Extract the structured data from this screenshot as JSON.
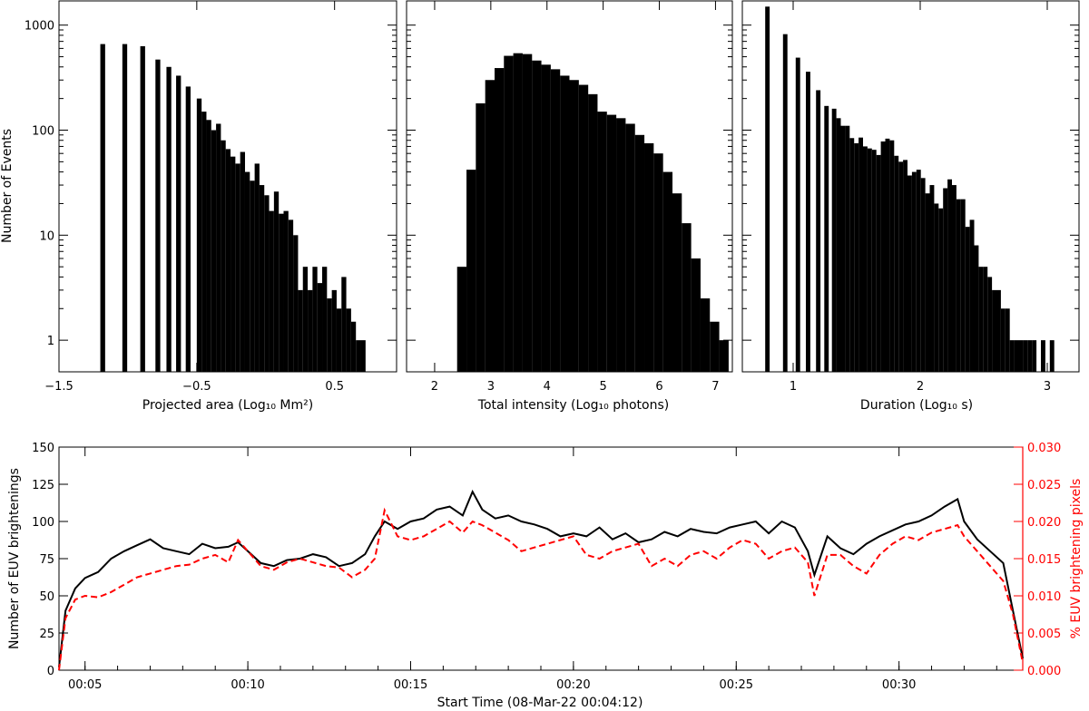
{
  "chart_data": [
    {
      "type": "bar",
      "id": "area-hist",
      "xlabel": "Projected area (Log₁₀ Mm²)",
      "ylabel": "Number of Events",
      "yscale": "log",
      "ylim": [
        0.5,
        1700
      ],
      "xlim": [
        -1.5,
        0.95
      ],
      "xticks": [
        -1.5,
        -0.5,
        0.5
      ],
      "xtick_labels": [
        "−1.5",
        "−0.5",
        "0.5"
      ],
      "yticks": [
        1,
        10,
        100,
        1000
      ],
      "ytick_labels": [
        "1",
        "10",
        "100",
        "1000"
      ],
      "bin_width": 0.035,
      "bins": [
        [
          -1.2,
          660
        ],
        [
          -1.04,
          660
        ],
        [
          -0.91,
          630
        ],
        [
          -0.8,
          470
        ],
        [
          -0.72,
          400
        ],
        [
          -0.65,
          330
        ],
        [
          -0.58,
          260
        ],
        [
          -0.5,
          200
        ],
        [
          -0.465,
          150
        ],
        [
          -0.43,
          125
        ],
        [
          -0.395,
          100
        ],
        [
          -0.36,
          115
        ],
        [
          -0.325,
          80
        ],
        [
          -0.29,
          66
        ],
        [
          -0.255,
          56
        ],
        [
          -0.22,
          48
        ],
        [
          -0.185,
          62
        ],
        [
          -0.15,
          40
        ],
        [
          -0.115,
          33
        ],
        [
          -0.08,
          48
        ],
        [
          -0.045,
          30
        ],
        [
          -0.01,
          24
        ],
        [
          0.025,
          17
        ],
        [
          0.06,
          26
        ],
        [
          0.095,
          16
        ],
        [
          0.13,
          17
        ],
        [
          0.165,
          14
        ],
        [
          0.2,
          10
        ],
        [
          0.235,
          3
        ],
        [
          0.27,
          5
        ],
        [
          0.305,
          3
        ],
        [
          0.34,
          5
        ],
        [
          0.375,
          3.5
        ],
        [
          0.41,
          5
        ],
        [
          0.445,
          2.5
        ],
        [
          0.48,
          3
        ],
        [
          0.515,
          2
        ],
        [
          0.55,
          4
        ],
        [
          0.585,
          2
        ],
        [
          0.62,
          1.5
        ],
        [
          0.655,
          1
        ],
        [
          0.69,
          1
        ]
      ]
    },
    {
      "type": "bar",
      "id": "intensity-hist",
      "xlabel": "Total intensity (Log₁₀ photons)",
      "ylabel": "",
      "yscale": "log",
      "ylim": [
        0.5,
        1700
      ],
      "xlim": [
        1.5,
        7.3
      ],
      "xticks": [
        2,
        3,
        4,
        5,
        6,
        7
      ],
      "xtick_labels": [
        "2",
        "3",
        "4",
        "5",
        "6",
        "7"
      ],
      "bin_width": 0.167,
      "bins": [
        [
          2.4,
          5
        ],
        [
          2.567,
          42
        ],
        [
          2.733,
          180
        ],
        [
          2.9,
          300
        ],
        [
          3.067,
          390
        ],
        [
          3.233,
          510
        ],
        [
          3.4,
          540
        ],
        [
          3.567,
          530
        ],
        [
          3.733,
          460
        ],
        [
          3.9,
          420
        ],
        [
          4.067,
          380
        ],
        [
          4.233,
          330
        ],
        [
          4.4,
          300
        ],
        [
          4.567,
          270
        ],
        [
          4.733,
          220
        ],
        [
          4.9,
          150
        ],
        [
          5.067,
          140
        ],
        [
          5.233,
          130
        ],
        [
          5.4,
          115
        ],
        [
          5.567,
          90
        ],
        [
          5.733,
          75
        ],
        [
          5.9,
          60
        ],
        [
          6.067,
          40
        ],
        [
          6.233,
          25
        ],
        [
          6.4,
          13
        ],
        [
          6.567,
          6
        ],
        [
          6.733,
          2.5
        ],
        [
          6.9,
          1.5
        ],
        [
          7.067,
          1
        ]
      ]
    },
    {
      "type": "bar",
      "id": "duration-hist",
      "xlabel": "Duration (Log₁₀ s)",
      "ylabel": "",
      "yscale": "log",
      "ylim": [
        0.5,
        1700
      ],
      "xlim": [
        0.6,
        3.25
      ],
      "xticks": [
        1,
        2,
        3
      ],
      "xtick_labels": [
        "1",
        "2",
        "3"
      ],
      "bin_width": 0.035,
      "bins": [
        [
          0.78,
          1500
        ],
        [
          0.92,
          820
        ],
        [
          1.02,
          490
        ],
        [
          1.1,
          360
        ],
        [
          1.18,
          240
        ],
        [
          1.245,
          170
        ],
        [
          1.305,
          160
        ],
        [
          1.34,
          130
        ],
        [
          1.375,
          110
        ],
        [
          1.41,
          110
        ],
        [
          1.445,
          84
        ],
        [
          1.48,
          75
        ],
        [
          1.515,
          85
        ],
        [
          1.55,
          70
        ],
        [
          1.585,
          67
        ],
        [
          1.62,
          65
        ],
        [
          1.655,
          58
        ],
        [
          1.69,
          78
        ],
        [
          1.725,
          83
        ],
        [
          1.76,
          80
        ],
        [
          1.795,
          57
        ],
        [
          1.83,
          50
        ],
        [
          1.865,
          52
        ],
        [
          1.9,
          37
        ],
        [
          1.935,
          40
        ],
        [
          1.97,
          42
        ],
        [
          2.005,
          35
        ],
        [
          2.04,
          25
        ],
        [
          2.075,
          30
        ],
        [
          2.11,
          20
        ],
        [
          2.145,
          18
        ],
        [
          2.18,
          28
        ],
        [
          2.215,
          34
        ],
        [
          2.25,
          30
        ],
        [
          2.285,
          22
        ],
        [
          2.32,
          22
        ],
        [
          2.355,
          12
        ],
        [
          2.39,
          14
        ],
        [
          2.425,
          8
        ],
        [
          2.46,
          5
        ],
        [
          2.495,
          5
        ],
        [
          2.53,
          4
        ],
        [
          2.565,
          3
        ],
        [
          2.6,
          3
        ],
        [
          2.635,
          2
        ],
        [
          2.67,
          2
        ],
        [
          2.705,
          1
        ],
        [
          2.74,
          1
        ],
        [
          2.775,
          1
        ],
        [
          2.81,
          1
        ],
        [
          2.845,
          1
        ],
        [
          2.88,
          1
        ],
        [
          2.95,
          1
        ],
        [
          3.02,
          1
        ]
      ],
      "gaps_note": ""
    },
    {
      "type": "line",
      "id": "timeseries",
      "xlabel": "Start Time (08-Mar-22 00:04:12)",
      "ylabel": "Number of EUV brightenings",
      "y2label": "% EUV brightening pixels",
      "xlim_minutes": [
        4.2,
        33.8
      ],
      "xticks_minutes": [
        5,
        10,
        15,
        20,
        25,
        30
      ],
      "xtick_labels": [
        "00:05",
        "00:10",
        "00:15",
        "00:20",
        "00:25",
        "00:30"
      ],
      "ylim": [
        0,
        150
      ],
      "yticks": [
        0,
        25,
        50,
        75,
        100,
        125,
        150
      ],
      "y2lim": [
        0,
        0.03
      ],
      "y2ticks": [
        0.0,
        0.005,
        0.01,
        0.015,
        0.02,
        0.025,
        0.03
      ],
      "y2tick_labels": [
        "0.000",
        "0.005",
        "0.010",
        "0.015",
        "0.020",
        "0.025",
        "0.030"
      ],
      "series": [
        {
          "name": "Number of EUV brightenings",
          "color": "#000000",
          "x_minutes": [
            4.2,
            4.4,
            4.7,
            5.0,
            5.4,
            5.8,
            6.2,
            6.6,
            7.0,
            7.4,
            7.8,
            8.2,
            8.6,
            9.0,
            9.4,
            9.7,
            10.0,
            10.4,
            10.8,
            11.2,
            11.6,
            12.0,
            12.4,
            12.8,
            13.2,
            13.6,
            13.9,
            14.2,
            14.6,
            15.0,
            15.4,
            15.8,
            16.2,
            16.6,
            16.9,
            17.2,
            17.6,
            18.0,
            18.4,
            18.8,
            19.2,
            19.6,
            20.0,
            20.4,
            20.8,
            21.2,
            21.6,
            22.0,
            22.4,
            22.8,
            23.2,
            23.6,
            24.0,
            24.4,
            24.8,
            25.2,
            25.6,
            26.0,
            26.4,
            26.8,
            27.2,
            27.4,
            27.8,
            28.2,
            28.6,
            29.0,
            29.4,
            29.8,
            30.2,
            30.6,
            31.0,
            31.4,
            31.8,
            32.0,
            32.4,
            32.8,
            33.2,
            33.5,
            33.8
          ],
          "values": [
            2,
            40,
            55,
            62,
            66,
            75,
            80,
            84,
            88,
            82,
            80,
            78,
            85,
            82,
            83,
            86,
            80,
            72,
            70,
            74,
            75,
            78,
            76,
            70,
            72,
            78,
            90,
            100,
            95,
            100,
            102,
            108,
            110,
            104,
            120,
            108,
            102,
            104,
            100,
            98,
            95,
            90,
            92,
            90,
            96,
            88,
            92,
            86,
            88,
            93,
            90,
            95,
            93,
            92,
            96,
            98,
            100,
            92,
            100,
            96,
            80,
            64,
            90,
            82,
            78,
            85,
            90,
            94,
            98,
            100,
            104,
            110,
            115,
            100,
            88,
            80,
            72,
            40,
            8
          ]
        },
        {
          "name": "% EUV brightening pixels",
          "color": "#ff0000",
          "x_minutes": [
            4.2,
            4.4,
            4.7,
            5.0,
            5.4,
            5.8,
            6.2,
            6.6,
            7.0,
            7.4,
            7.8,
            8.2,
            8.6,
            9.0,
            9.4,
            9.7,
            10.0,
            10.4,
            10.8,
            11.2,
            11.6,
            12.0,
            12.4,
            12.8,
            13.2,
            13.6,
            13.9,
            14.2,
            14.6,
            15.0,
            15.4,
            15.8,
            16.2,
            16.6,
            16.9,
            17.2,
            17.6,
            18.0,
            18.4,
            18.8,
            19.2,
            19.6,
            20.0,
            20.4,
            20.8,
            21.2,
            21.6,
            22.0,
            22.4,
            22.8,
            23.2,
            23.6,
            24.0,
            24.4,
            24.8,
            25.2,
            25.6,
            26.0,
            26.4,
            26.8,
            27.2,
            27.4,
            27.8,
            28.2,
            28.6,
            29.0,
            29.4,
            29.8,
            30.2,
            30.6,
            31.0,
            31.4,
            31.8,
            32.0,
            32.4,
            32.8,
            33.2,
            33.5,
            33.8
          ],
          "values": [
            0.0,
            0.007,
            0.0095,
            0.01,
            0.0098,
            0.0105,
            0.0115,
            0.0125,
            0.013,
            0.0135,
            0.014,
            0.0142,
            0.015,
            0.0155,
            0.0145,
            0.0175,
            0.016,
            0.014,
            0.0135,
            0.0145,
            0.015,
            0.0145,
            0.014,
            0.0138,
            0.0125,
            0.0135,
            0.015,
            0.0215,
            0.018,
            0.0175,
            0.018,
            0.019,
            0.02,
            0.0185,
            0.02,
            0.0195,
            0.0185,
            0.0175,
            0.016,
            0.0165,
            0.017,
            0.0175,
            0.018,
            0.0155,
            0.015,
            0.016,
            0.0165,
            0.017,
            0.014,
            0.015,
            0.014,
            0.0155,
            0.016,
            0.015,
            0.0165,
            0.0175,
            0.017,
            0.015,
            0.016,
            0.0165,
            0.0145,
            0.01,
            0.0155,
            0.0155,
            0.014,
            0.013,
            0.0155,
            0.017,
            0.018,
            0.0175,
            0.0185,
            0.019,
            0.0195,
            0.018,
            0.016,
            0.014,
            0.012,
            0.0075,
            0.001
          ]
        }
      ]
    }
  ]
}
